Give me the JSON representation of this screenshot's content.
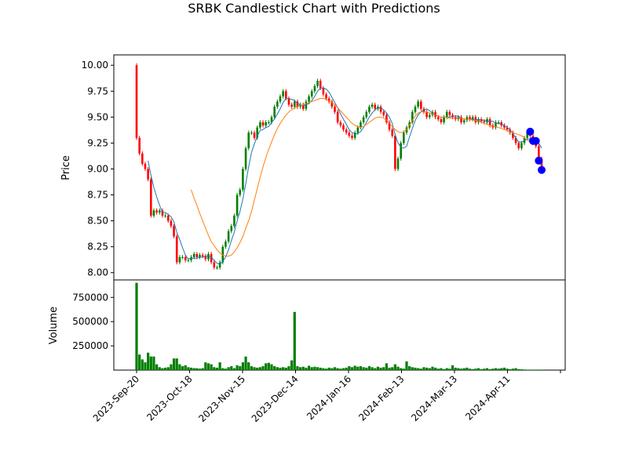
{
  "chart_data": {
    "type": "candlestick",
    "title": "SRBK Candlestick Chart with Predictions",
    "price_panel": {
      "ylabel": "Price",
      "ylim": [
        7.93,
        10.1
      ],
      "yticks": [
        "8.00",
        "8.25",
        "8.50",
        "8.75",
        "9.00",
        "9.25",
        "9.50",
        "9.75",
        "10.00"
      ],
      "close": [
        9.3,
        9.15,
        9.05,
        9.0,
        8.9,
        8.55,
        8.6,
        8.58,
        8.6,
        8.55,
        8.55,
        8.5,
        8.45,
        8.35,
        8.1,
        8.15,
        8.15,
        8.12,
        8.12,
        8.15,
        8.18,
        8.15,
        8.17,
        8.16,
        8.13,
        8.18,
        8.1,
        8.05,
        8.05,
        8.1,
        8.25,
        8.3,
        8.4,
        8.45,
        8.55,
        8.75,
        8.8,
        9.0,
        9.2,
        9.35,
        9.35,
        9.3,
        9.4,
        9.45,
        9.42,
        9.45,
        9.45,
        9.5,
        9.6,
        9.65,
        9.7,
        9.75,
        9.68,
        9.62,
        9.6,
        9.65,
        9.6,
        9.62,
        9.58,
        9.65,
        9.7,
        9.75,
        9.8,
        9.85,
        9.78,
        9.72,
        9.68,
        9.65,
        9.6,
        9.55,
        9.45,
        9.42,
        9.38,
        9.35,
        9.32,
        9.3,
        9.35,
        9.4,
        9.45,
        9.5,
        9.55,
        9.6,
        9.62,
        9.58,
        9.6,
        9.55,
        9.52,
        9.45,
        9.38,
        9.32,
        9.0,
        9.1,
        9.25,
        9.35,
        9.4,
        9.45,
        9.55,
        9.6,
        9.65,
        9.58,
        9.55,
        9.5,
        9.52,
        9.55,
        9.5,
        9.48,
        9.45,
        9.5,
        9.55,
        9.52,
        9.5,
        9.48,
        9.5,
        9.45,
        9.47,
        9.5,
        9.48,
        9.5,
        9.45,
        9.48,
        9.46,
        9.45,
        9.48,
        9.42,
        9.4,
        9.45,
        9.45,
        9.42,
        9.4,
        9.38,
        9.35,
        9.3,
        9.25,
        9.2,
        9.25,
        9.3,
        9.35,
        9.32,
        9.25,
        9.22,
        9.1,
        8.98
      ],
      "ma_short": [
        null,
        null,
        null,
        null,
        9.08,
        8.94,
        8.82,
        8.73,
        8.65,
        8.58,
        8.58,
        8.56,
        8.54,
        8.49,
        8.39,
        8.32,
        8.24,
        8.17,
        8.13,
        8.14,
        8.14,
        8.14,
        8.15,
        8.15,
        8.16,
        8.16,
        8.15,
        8.12,
        8.09,
        8.08,
        8.11,
        8.15,
        8.22,
        8.31,
        8.39,
        8.5,
        8.59,
        8.71,
        8.86,
        9.02,
        9.16,
        9.24,
        9.32,
        9.37,
        9.38,
        9.4,
        9.41,
        9.45,
        9.48,
        9.53,
        9.58,
        9.64,
        9.68,
        9.68,
        9.67,
        9.66,
        9.63,
        9.62,
        9.61,
        9.62,
        9.63,
        9.66,
        9.7,
        9.75,
        9.78,
        9.78,
        9.77,
        9.74,
        9.69,
        9.64,
        9.59,
        9.53,
        9.48,
        9.43,
        9.38,
        9.35,
        9.34,
        9.34,
        9.36,
        9.4,
        9.45,
        9.5,
        9.54,
        9.57,
        9.59,
        9.59,
        9.57,
        9.54,
        9.5,
        9.44,
        9.33,
        9.25,
        9.21,
        9.2,
        9.22,
        9.31,
        9.39,
        9.47,
        9.52,
        9.55,
        9.57,
        9.58,
        9.56,
        9.54,
        9.52,
        9.51,
        9.5,
        9.5,
        9.5,
        9.5,
        9.51,
        9.51,
        9.51,
        9.49,
        9.48,
        9.48,
        9.48,
        9.48,
        9.47,
        9.48,
        9.47,
        9.47,
        9.46,
        9.46,
        9.46,
        9.44,
        9.44,
        9.43,
        9.42,
        9.4,
        9.38,
        9.34,
        9.3,
        9.26,
        9.26,
        9.27,
        9.29,
        9.29,
        9.28,
        9.27,
        9.25,
        9.2
      ],
      "ma_long": [
        null,
        null,
        null,
        null,
        null,
        null,
        null,
        null,
        null,
        null,
        null,
        null,
        null,
        null,
        null,
        null,
        null,
        null,
        null,
        8.8,
        8.72,
        8.65,
        8.57,
        8.5,
        8.43,
        8.36,
        8.3,
        8.26,
        8.22,
        8.19,
        8.17,
        8.16,
        8.16,
        8.17,
        8.2,
        8.24,
        8.29,
        8.35,
        8.43,
        8.5,
        8.59,
        8.7,
        8.81,
        8.92,
        9.02,
        9.11,
        9.19,
        9.26,
        9.33,
        9.39,
        9.44,
        9.48,
        9.52,
        9.55,
        9.57,
        9.59,
        9.6,
        9.61,
        9.62,
        9.63,
        9.64,
        9.65,
        9.66,
        9.67,
        9.68,
        9.68,
        9.67,
        9.66,
        9.64,
        9.62,
        9.59,
        9.56,
        9.53,
        9.5,
        9.47,
        9.44,
        9.42,
        9.41,
        9.4,
        9.41,
        9.43,
        9.45,
        9.47,
        9.49,
        9.5,
        9.5,
        9.49,
        9.47,
        9.44,
        9.41,
        9.38,
        9.36,
        9.35,
        9.36,
        9.38,
        9.42,
        9.47,
        9.51,
        9.54,
        9.55,
        9.55,
        9.55,
        9.54,
        9.53,
        9.52,
        9.51,
        9.5,
        9.5,
        9.5,
        9.49,
        9.49,
        9.49,
        9.49,
        9.49,
        9.48,
        9.48,
        9.48,
        9.47,
        9.47,
        9.46,
        9.45,
        9.44,
        9.43,
        9.42,
        9.41,
        9.41,
        9.4,
        9.39,
        9.38,
        9.37,
        9.36,
        9.35,
        9.34,
        9.33,
        9.32,
        9.3,
        9.28,
        9.26,
        9.25,
        9.24
      ],
      "predictions": [
        9.36,
        9.27,
        9.27,
        9.08,
        8.99
      ],
      "colors": {
        "up": "#007f00",
        "down": "#ff0000",
        "ma_short": "#1f77b4",
        "ma_long": "#ff7f0e",
        "prediction": "#0000ff"
      }
    },
    "volume_panel": {
      "ylabel": "Volume",
      "yticks": [
        "250000",
        "500000",
        "750000"
      ],
      "ymax": 930000,
      "values": [
        900000,
        160000,
        110000,
        80000,
        180000,
        140000,
        140000,
        60000,
        30000,
        20000,
        25000,
        30000,
        60000,
        120000,
        120000,
        60000,
        40000,
        50000,
        30000,
        25000,
        20000,
        20000,
        15000,
        20000,
        80000,
        70000,
        60000,
        30000,
        25000,
        80000,
        20000,
        15000,
        30000,
        40000,
        20000,
        50000,
        40000,
        80000,
        140000,
        80000,
        40000,
        30000,
        25000,
        30000,
        40000,
        70000,
        75000,
        60000,
        40000,
        30000,
        25000,
        30000,
        25000,
        40000,
        100000,
        600000,
        40000,
        30000,
        35000,
        25000,
        45000,
        30000,
        35000,
        30000,
        25000,
        20000,
        15000,
        25000,
        20000,
        30000,
        20000,
        15000,
        20000,
        25000,
        40000,
        30000,
        45000,
        35000,
        40000,
        30000,
        25000,
        40000,
        30000,
        20000,
        35000,
        25000,
        30000,
        70000,
        25000,
        30000,
        60000,
        35000,
        20000,
        15000,
        90000,
        40000,
        30000,
        25000,
        20000,
        15000,
        30000,
        25000,
        20000,
        35000,
        25000,
        15000,
        20000,
        10000,
        20000,
        15000,
        50000,
        25000,
        20000,
        15000,
        20000,
        25000,
        15000,
        10000,
        15000,
        20000,
        10000,
        15000,
        20000,
        10000,
        15000,
        20000,
        15000,
        20000,
        25000,
        15000,
        10000,
        15000,
        20000,
        10000,
        8000,
        6000,
        5000,
        5000,
        5000,
        5000,
        5000,
        5000
      ],
      "color": "#007f00"
    },
    "x_ticks": [
      "2023-Sep-20",
      "2023-Oct-18",
      "2023-Nov-15",
      "2023-Dec-14",
      "2024-Jan-16",
      "2024-Feb-13",
      "2024-Mar-13",
      "2024-Apr-11"
    ],
    "legend": "none",
    "grid": false
  }
}
